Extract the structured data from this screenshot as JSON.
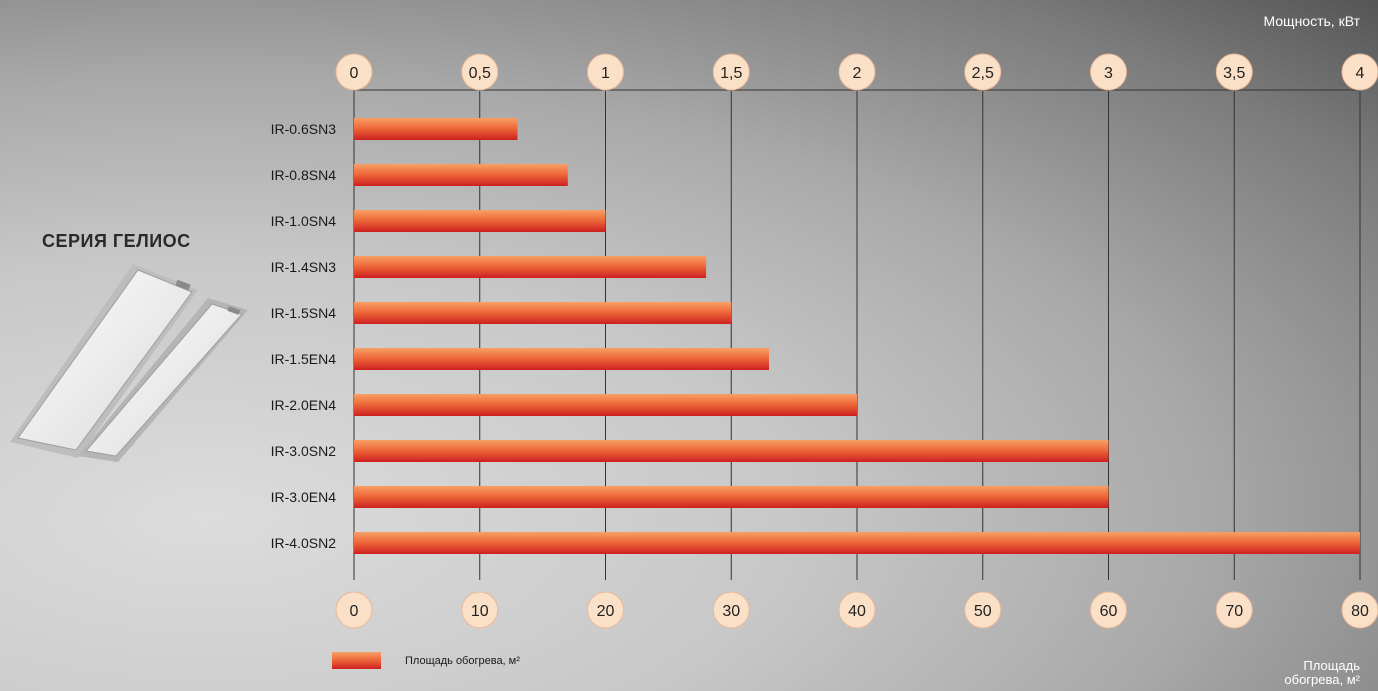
{
  "series_title": "СЕРИЯ ГЕЛИОС",
  "top_axis_title": "Мощность, кВт",
  "bottom_axis_title_line1": "Площадь",
  "bottom_axis_title_line2": "обогрева, м²",
  "legend_label": "Площадь обогрева, м²",
  "colors": {
    "bar_top": "#f7a066",
    "bar_mid": "#ef6a3a",
    "bar_bottom": "#cc2020",
    "tick_circle": "#fbe0c8"
  },
  "chart_data": {
    "type": "bar",
    "orientation": "horizontal",
    "categories": [
      "IR-0.6SN3",
      "IR-0.8SN4",
      "IR-1.0SN4",
      "IR-1.4SN3",
      "IR-1.5SN4",
      "IR-1.5EN4",
      "IR-2.0EN4",
      "IR-3.0SN2",
      "IR-3.0EN4",
      "IR-4.0SN2"
    ],
    "series": [
      {
        "name": "Площадь обогрева, м²",
        "values": [
          13,
          17,
          20,
          28,
          30,
          33,
          40,
          60,
          60,
          80
        ]
      }
    ],
    "xlim": [
      0,
      80
    ],
    "x_ticks": [
      "0",
      "10",
      "20",
      "30",
      "40",
      "50",
      "60",
      "70",
      "80"
    ],
    "x2lim": [
      0,
      4
    ],
    "x2_ticks": [
      "0",
      "0,5",
      "1",
      "1,5",
      "2",
      "2,5",
      "3",
      "3,5",
      "4"
    ],
    "xlabel": "Площадь обогрева, м²",
    "x2label": "Мощность, кВт",
    "grid": true,
    "legend_position": "bottom-left"
  }
}
